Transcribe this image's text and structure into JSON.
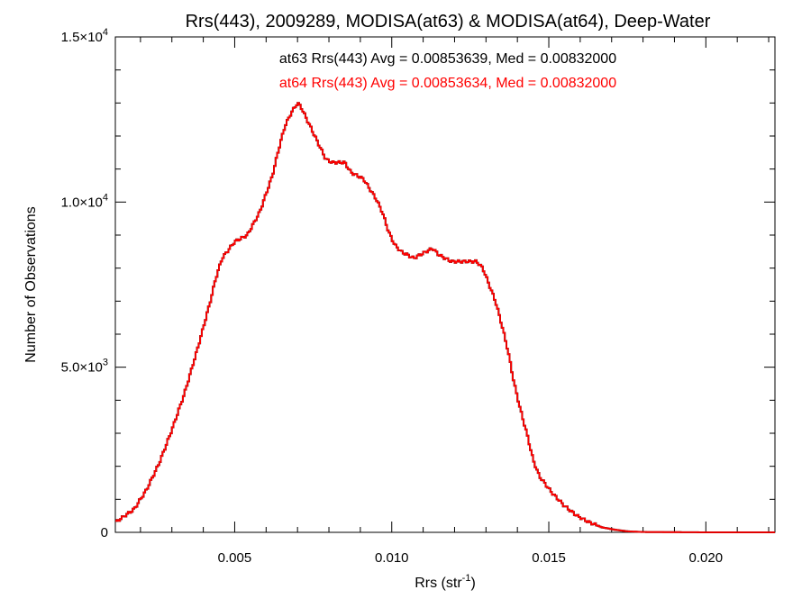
{
  "chart_data": {
    "type": "line",
    "title": "Rrs(443), 2009289, MODISA(at63) & MODISA(at64), Deep-Water",
    "xlabel": {
      "base": "Rrs (str",
      "sup": "-1",
      "tail": ")"
    },
    "ylabel": "Number of Observations",
    "xlim": [
      0.0012,
      0.0222
    ],
    "ylim": [
      0,
      15000
    ],
    "x_ticks": [
      {
        "value": 0.005,
        "label": "0.005"
      },
      {
        "value": 0.01,
        "label": "0.010"
      },
      {
        "value": 0.015,
        "label": "0.015"
      },
      {
        "value": 0.02,
        "label": "0.020"
      }
    ],
    "y_ticks": [
      {
        "value": 0,
        "mant": "0",
        "exp": ""
      },
      {
        "value": 5000,
        "mant": "5.0×10",
        "exp": "3"
      },
      {
        "value": 10000,
        "mant": "1.0×10",
        "exp": "4"
      },
      {
        "value": 15000,
        "mant": "1.5×10",
        "exp": "4"
      }
    ],
    "annotations": [
      {
        "text": "at63 Rrs(443) Avg = 0.00853639, Med = 0.00832000",
        "color": "#000000"
      },
      {
        "text": "at64 Rrs(443) Avg = 0.00853634, Med = 0.00832000",
        "color": "#ff0000"
      }
    ],
    "series": [
      {
        "color": "#000000",
        "x": [
          0.0012,
          0.0018,
          0.0022,
          0.0026,
          0.003,
          0.0034,
          0.0038,
          0.0042,
          0.0044,
          0.0046,
          0.005,
          0.0054,
          0.0058,
          0.0062,
          0.0064,
          0.0066,
          0.0068,
          0.007,
          0.0071,
          0.0073,
          0.0075,
          0.0077,
          0.0079,
          0.0081,
          0.0085,
          0.0087,
          0.0089,
          0.0091,
          0.0093,
          0.0095,
          0.0097,
          0.0099,
          0.0101,
          0.0103,
          0.0107,
          0.0109,
          0.0111,
          0.0113,
          0.0115,
          0.0117,
          0.0119,
          0.0123,
          0.0127,
          0.0129,
          0.0131,
          0.0133,
          0.0135,
          0.0137,
          0.0139,
          0.0141,
          0.0143,
          0.0145,
          0.0147,
          0.0151,
          0.0155,
          0.0159,
          0.0163,
          0.0167,
          0.0171,
          0.0175,
          0.018,
          0.019,
          0.02,
          0.0222
        ],
        "y": [
          300,
          700,
          1300,
          2100,
          3100,
          4200,
          5500,
          6900,
          7700,
          8300,
          8800,
          9000,
          9700,
          10800,
          11600,
          12300,
          12700,
          13000,
          12900,
          12500,
          12100,
          11700,
          11300,
          11200,
          11200,
          10900,
          10800,
          10700,
          10400,
          10100,
          9700,
          9100,
          8700,
          8500,
          8300,
          8400,
          8500,
          8600,
          8400,
          8300,
          8200,
          8200,
          8200,
          8000,
          7500,
          7000,
          6300,
          5500,
          4500,
          3700,
          3000,
          2200,
          1700,
          1200,
          800,
          500,
          300,
          150,
          80,
          30,
          10,
          5,
          0,
          0
        ]
      },
      {
        "color": "#ff0000",
        "x": [
          0.0012,
          0.0018,
          0.0022,
          0.0026,
          0.003,
          0.0034,
          0.0038,
          0.0042,
          0.0044,
          0.0046,
          0.005,
          0.0054,
          0.0058,
          0.0062,
          0.0064,
          0.0066,
          0.0068,
          0.007,
          0.0071,
          0.0073,
          0.0075,
          0.0077,
          0.0079,
          0.0081,
          0.0085,
          0.0087,
          0.0089,
          0.0091,
          0.0093,
          0.0095,
          0.0097,
          0.0099,
          0.0101,
          0.0103,
          0.0107,
          0.0109,
          0.0111,
          0.0113,
          0.0115,
          0.0117,
          0.0119,
          0.0123,
          0.0127,
          0.0129,
          0.0131,
          0.0133,
          0.0135,
          0.0137,
          0.0139,
          0.0141,
          0.0143,
          0.0145,
          0.0147,
          0.0151,
          0.0155,
          0.0159,
          0.0163,
          0.0167,
          0.0171,
          0.0175,
          0.018,
          0.019,
          0.02,
          0.0222
        ],
        "y": [
          300,
          700,
          1300,
          2100,
          3100,
          4200,
          5500,
          6900,
          7700,
          8300,
          8800,
          9000,
          9700,
          10800,
          11600,
          12300,
          12700,
          13000,
          12900,
          12500,
          12100,
          11700,
          11300,
          11200,
          11200,
          10900,
          10800,
          10700,
          10400,
          10100,
          9700,
          9100,
          8700,
          8500,
          8300,
          8400,
          8500,
          8600,
          8400,
          8300,
          8200,
          8200,
          8200,
          8000,
          7500,
          7000,
          6300,
          5500,
          4500,
          3700,
          3000,
          2200,
          1700,
          1200,
          800,
          500,
          300,
          150,
          80,
          30,
          10,
          5,
          0,
          0
        ]
      }
    ],
    "grid": false,
    "legend": "none"
  }
}
